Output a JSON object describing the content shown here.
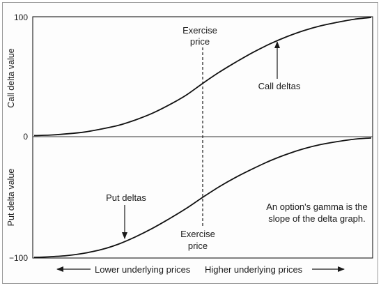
{
  "chart_data": {
    "type": "line",
    "series": [
      {
        "name": "Call deltas",
        "x": [
          0,
          0.05,
          0.1,
          0.15,
          0.2,
          0.25,
          0.3,
          0.35,
          0.4,
          0.45,
          0.5,
          0.55,
          0.6,
          0.65,
          0.7,
          0.75,
          0.8,
          0.85,
          0.9,
          0.95,
          1
        ],
        "values": [
          1.5,
          2,
          3,
          4.5,
          7,
          10,
          14.5,
          20,
          27,
          35,
          45,
          54.5,
          63,
          71,
          78,
          84,
          89,
          93,
          96,
          98.5,
          100
        ]
      },
      {
        "name": "Put deltas",
        "x": [
          0,
          0.05,
          0.1,
          0.15,
          0.2,
          0.25,
          0.3,
          0.35,
          0.4,
          0.45,
          0.5,
          0.55,
          0.6,
          0.65,
          0.7,
          0.75,
          0.8,
          0.85,
          0.9,
          0.95,
          1
        ],
        "values": [
          -100,
          -99.5,
          -98.5,
          -96.5,
          -93.5,
          -89,
          -83,
          -76,
          -68,
          -59.5,
          -50,
          -41,
          -33,
          -26,
          -19.5,
          -14,
          -9.5,
          -6,
          -3.5,
          -1.5,
          -0.5
        ]
      }
    ],
    "ylim": [
      -100,
      100
    ],
    "xlim": [
      0,
      1
    ],
    "yticks": [
      "100",
      "0",
      "−100"
    ],
    "upper_ylabel": "Call delta value",
    "lower_ylabel": "Put delta value",
    "exercise_x": 0.5,
    "annotations": {
      "exercise_top": [
        "Exercise",
        "price"
      ],
      "exercise_bottom": [
        "Exercise",
        "price"
      ],
      "call_label": "Call deltas",
      "put_label": "Put deltas",
      "gamma_note": [
        "An option's gamma is the",
        "slope of the delta graph."
      ]
    },
    "axis_caption": {
      "left": "Lower underlying prices",
      "right": "Higher underlying prices"
    },
    "grid": false
  }
}
